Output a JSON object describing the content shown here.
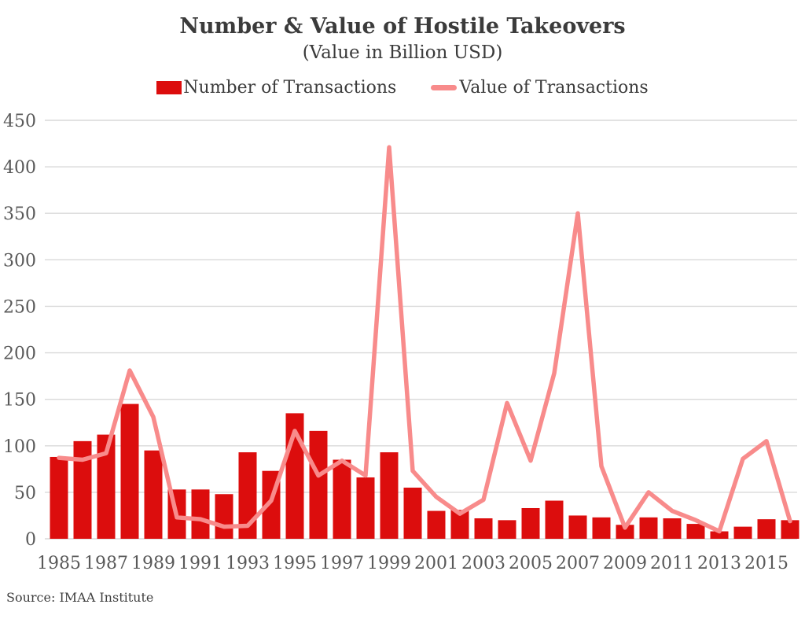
{
  "colors": {
    "bar": "#dc0d0d",
    "line": "#f88b8b",
    "grid": "#d9d9d9",
    "axis_text": "#595959",
    "title_text": "#3b3b3b"
  },
  "chart_data": {
    "type": "bar+line combo",
    "title": "Number & Value of Hostile Takeovers",
    "subtitle": "(Value in Billion USD)",
    "source": "Source: IMAA Institute",
    "xlabel": "",
    "ylabel": "",
    "ylim": [
      0,
      450
    ],
    "ytick_interval": 50,
    "x_tick_interval": 2,
    "grid": "horizontal",
    "legend_position": "top",
    "categories": [
      1985,
      1986,
      1987,
      1988,
      1989,
      1990,
      1991,
      1992,
      1993,
      1994,
      1995,
      1996,
      1997,
      1998,
      1999,
      2000,
      2001,
      2002,
      2003,
      2004,
      2005,
      2006,
      2007,
      2008,
      2009,
      2010,
      2011,
      2012,
      2013,
      2014,
      2015,
      2016
    ],
    "series": [
      {
        "name": "Number of Transactions",
        "type": "bar",
        "values": [
          88,
          105,
          112,
          145,
          95,
          53,
          53,
          48,
          93,
          73,
          135,
          116,
          85,
          66,
          93,
          55,
          30,
          31,
          22,
          20,
          33,
          41,
          25,
          23,
          15,
          23,
          22,
          16,
          8,
          13,
          21,
          20
        ]
      },
      {
        "name": "Value of Transactions",
        "type": "line",
        "values": [
          87,
          85,
          92,
          181,
          131,
          23,
          21,
          13,
          14,
          41,
          116,
          68,
          84,
          68,
          421,
          73,
          45,
          27,
          42,
          146,
          84,
          178,
          350,
          78,
          12,
          50,
          30,
          20,
          8,
          86,
          105,
          19
        ]
      }
    ]
  }
}
